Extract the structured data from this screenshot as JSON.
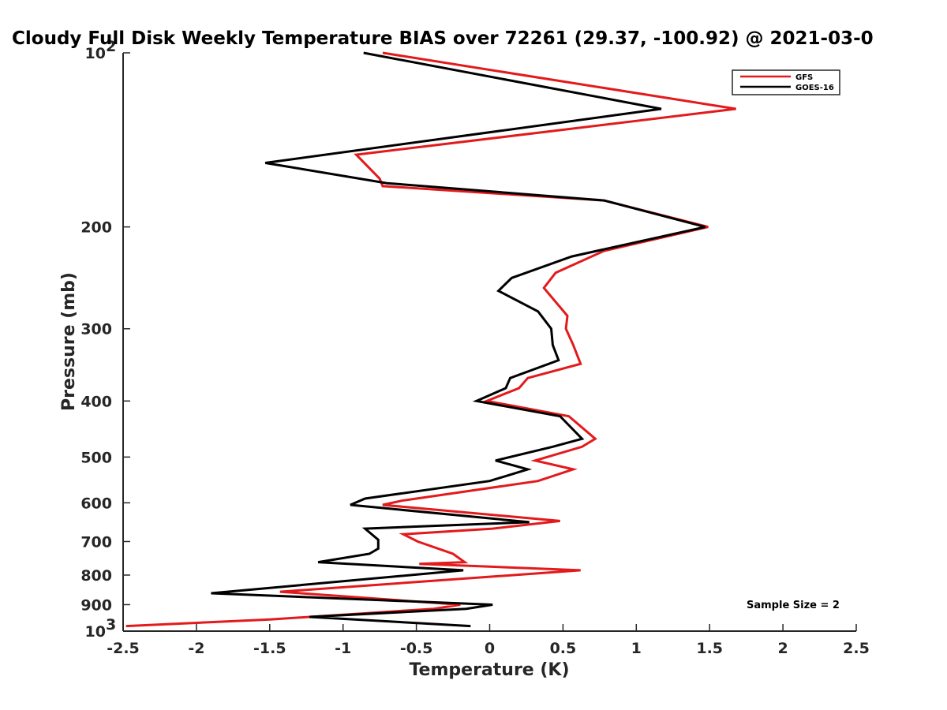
{
  "chart_data": {
    "type": "line",
    "title": "Cloudy Full Disk Weekly Temperature BIAS over 72261 (29.37, -100.92) @ 2021-03-0",
    "xlabel": "Temperature (K)",
    "ylabel": "Pressure (mb)",
    "xlim": [
      -2.5,
      2.5
    ],
    "ylim": [
      100,
      1000
    ],
    "y_scale": "log",
    "y_reversed": true,
    "grid": false,
    "legend_position": "top-right",
    "x_ticks": [
      {
        "value": -2.5,
        "label": "-2.5"
      },
      {
        "value": -2,
        "label": "-2"
      },
      {
        "value": -1.5,
        "label": "-1.5"
      },
      {
        "value": -1,
        "label": "-1"
      },
      {
        "value": -0.5,
        "label": "-0.5"
      },
      {
        "value": 0,
        "label": "0"
      },
      {
        "value": 0.5,
        "label": "0.5"
      },
      {
        "value": 1,
        "label": "1"
      },
      {
        "value": 1.5,
        "label": "1.5"
      },
      {
        "value": 2,
        "label": "2"
      },
      {
        "value": 2.5,
        "label": "2.5"
      }
    ],
    "y_ticks": [
      {
        "value": 100,
        "label": "10",
        "exp": "2"
      },
      {
        "value": 200,
        "label": "200",
        "exp": ""
      },
      {
        "value": 300,
        "label": "300",
        "exp": ""
      },
      {
        "value": 400,
        "label": "400",
        "exp": ""
      },
      {
        "value": 500,
        "label": "500",
        "exp": ""
      },
      {
        "value": 600,
        "label": "600",
        "exp": ""
      },
      {
        "value": 700,
        "label": "700",
        "exp": ""
      },
      {
        "value": 800,
        "label": "800",
        "exp": ""
      },
      {
        "value": 900,
        "label": "900",
        "exp": ""
      },
      {
        "value": 1000,
        "label": "10",
        "exp": "3"
      }
    ],
    "series": [
      {
        "name": "GFS",
        "color": "#e31a1c",
        "points": [
          [
            -0.73,
            100
          ],
          [
            1.68,
            125
          ],
          [
            -0.91,
            150
          ],
          [
            -0.75,
            165
          ],
          [
            -0.73,
            170
          ],
          [
            0.78,
            180
          ],
          [
            1.49,
            200
          ],
          [
            0.78,
            220
          ],
          [
            0.45,
            240
          ],
          [
            0.37,
            255
          ],
          [
            0.53,
            285
          ],
          [
            0.52,
            300
          ],
          [
            0.57,
            320
          ],
          [
            0.62,
            345
          ],
          [
            0.26,
            365
          ],
          [
            0.2,
            380
          ],
          [
            -0.02,
            400
          ],
          [
            0.54,
            425
          ],
          [
            0.72,
            465
          ],
          [
            0.63,
            480
          ],
          [
            0.31,
            507
          ],
          [
            0.57,
            525
          ],
          [
            0.33,
            550
          ],
          [
            -0.6,
            595
          ],
          [
            -0.73,
            605
          ],
          [
            0.48,
            645
          ],
          [
            0.02,
            665
          ],
          [
            -0.59,
            680
          ],
          [
            -0.49,
            700
          ],
          [
            -0.25,
            735
          ],
          [
            -0.17,
            760
          ],
          [
            -0.48,
            765
          ],
          [
            0.62,
            785
          ],
          [
            -1.43,
            855
          ],
          [
            -0.2,
            900
          ],
          [
            -0.38,
            915
          ],
          [
            -1.5,
            955
          ],
          [
            -2.48,
            980
          ]
        ]
      },
      {
        "name": "GOES-16",
        "color": "#000000",
        "points": [
          [
            -0.86,
            100
          ],
          [
            1.17,
            125
          ],
          [
            -1.53,
            155
          ],
          [
            -0.7,
            168
          ],
          [
            0.78,
            180
          ],
          [
            1.47,
            200
          ],
          [
            0.56,
            225
          ],
          [
            0.15,
            245
          ],
          [
            0.06,
            258
          ],
          [
            0.33,
            280
          ],
          [
            0.42,
            300
          ],
          [
            0.43,
            320
          ],
          [
            0.47,
            340
          ],
          [
            0.14,
            365
          ],
          [
            0.11,
            380
          ],
          [
            -0.09,
            400
          ],
          [
            0.48,
            425
          ],
          [
            0.63,
            465
          ],
          [
            0.43,
            480
          ],
          [
            0.04,
            507
          ],
          [
            0.26,
            525
          ],
          [
            0.0,
            550
          ],
          [
            -0.85,
            590
          ],
          [
            -0.95,
            605
          ],
          [
            0.27,
            648
          ],
          [
            -0.85,
            665
          ],
          [
            -0.76,
            695
          ],
          [
            -0.76,
            720
          ],
          [
            -0.82,
            735
          ],
          [
            -1.17,
            760
          ],
          [
            -0.18,
            785
          ],
          [
            -1.9,
            860
          ],
          [
            0.02,
            900
          ],
          [
            -0.16,
            915
          ],
          [
            -1.23,
            945
          ],
          [
            -0.13,
            980
          ]
        ]
      }
    ],
    "annotations": [
      {
        "text": "Sample Size = 2"
      }
    ]
  }
}
